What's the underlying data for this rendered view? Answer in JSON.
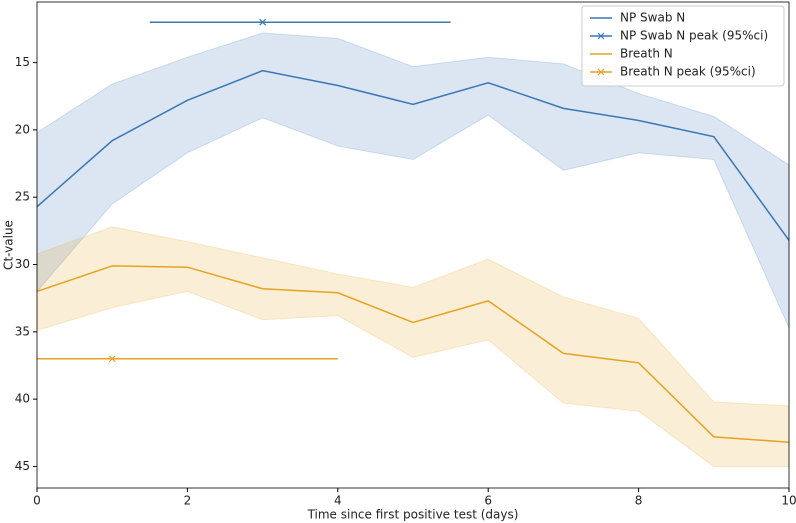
{
  "chart_data": {
    "type": "line",
    "x_label": "Time since first positive test (days)",
    "y_label": "Ct-value",
    "x": [
      0,
      1,
      2,
      3,
      4,
      5,
      6,
      7,
      8,
      9,
      10
    ],
    "xlim": [
      0,
      10
    ],
    "xticks": [
      0,
      2,
      4,
      6,
      8,
      10
    ],
    "ylim": [
      46.6,
      10.5
    ],
    "yticks": [
      15,
      20,
      25,
      30,
      35,
      40,
      45
    ],
    "y_inverted": true,
    "legend": "upper right",
    "series": [
      {
        "name": "NP Swab N",
        "color": "#3a77b5",
        "values": [
          25.7,
          20.8,
          17.8,
          15.6,
          16.7,
          18.1,
          16.5,
          18.4,
          19.3,
          20.5,
          28.2
        ],
        "band_low": [
          20.2,
          16.6,
          14.6,
          12.8,
          13.2,
          15.3,
          14.6,
          15.1,
          17.3,
          19.0,
          22.6
        ],
        "band_high": [
          32.0,
          25.5,
          21.7,
          19.1,
          21.2,
          22.2,
          18.9,
          23.0,
          21.7,
          22.2,
          34.7
        ]
      },
      {
        "name": "Breath N",
        "color": "#e5a322",
        "values": [
          32.0,
          30.1,
          30.2,
          31.8,
          32.1,
          34.3,
          32.7,
          36.6,
          37.3,
          42.8,
          43.2
        ],
        "band_low": [
          29.2,
          27.2,
          28.3,
          29.5,
          30.7,
          31.7,
          29.6,
          32.4,
          34.0,
          40.2,
          40.5
        ],
        "band_high": [
          34.9,
          33.2,
          32.0,
          34.1,
          33.8,
          36.9,
          35.6,
          40.3,
          40.9,
          45.0,
          45.0
        ]
      }
    ],
    "peaks": [
      {
        "name": "NP Swab N peak (95%ci)",
        "color": "#3a77b5",
        "x": 3,
        "y": 12.0,
        "x_low": 1.5,
        "x_high": 5.5
      },
      {
        "name": "Breath N peak (95%ci)",
        "color": "#e5a322",
        "x": 1,
        "y": 37.0,
        "x_low": 0,
        "x_high": 4
      }
    ]
  }
}
